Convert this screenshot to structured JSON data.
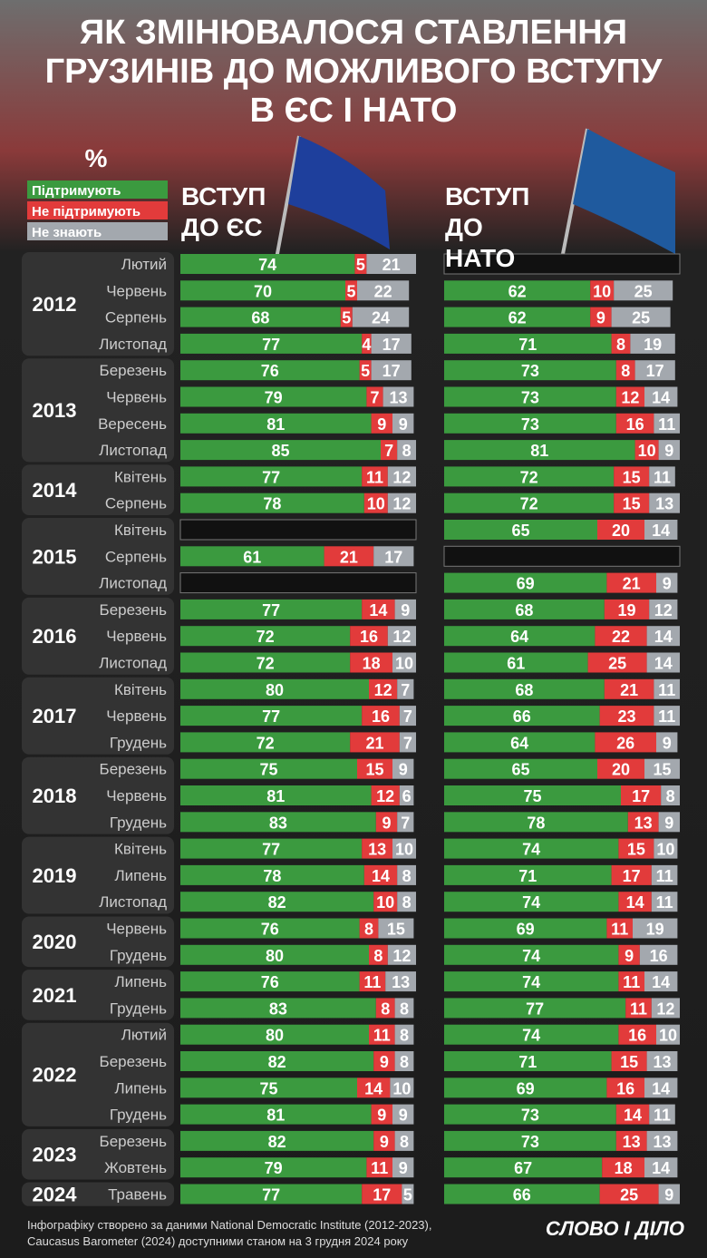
{
  "title": [
    "ЯК ЗМІНЮВАЛОСЯ СТАВЛЕННЯ",
    "ГРУЗИНІВ ДО МОЖЛИВОГО ВСТУПУ",
    "В ЄС І НАТО"
  ],
  "unit": "%",
  "years": [
    {
      "label": "2012",
      "months": [
        "Лютий",
        "Червень",
        "Серпень",
        "Листопад"
      ]
    },
    {
      "label": "2013",
      "months": [
        "Березень",
        "Червень",
        "Вересень",
        "Листопад"
      ]
    },
    {
      "label": "2014",
      "months": [
        "Квітень",
        "Серпень"
      ]
    },
    {
      "label": "2015",
      "months": [
        "Квітень",
        "Серпень",
        "Листопад"
      ]
    },
    {
      "label": "2016",
      "months": [
        "Березень",
        "Червень",
        "Листопад"
      ]
    },
    {
      "label": "2017",
      "months": [
        "Квітень",
        "Червень",
        "Грудень"
      ]
    },
    {
      "label": "2018",
      "months": [
        "Березень",
        "Червень",
        "Грудень"
      ]
    },
    {
      "label": "2019",
      "months": [
        "Квітень",
        "Липень",
        "Листопад"
      ]
    },
    {
      "label": "2020",
      "months": [
        "Червень",
        "Грудень"
      ]
    },
    {
      "label": "2021",
      "months": [
        "Липень",
        "Грудень"
      ]
    },
    {
      "label": "2022",
      "months": [
        "Лютий",
        "Березень",
        "Липень",
        "Грудень"
      ]
    },
    {
      "label": "2023",
      "months": [
        "Березень",
        "Жовтень"
      ]
    },
    {
      "label": "2024",
      "months": [
        "Травень"
      ]
    }
  ],
  "chart_data": [
    {
      "type": "bar",
      "stacked": true,
      "title": "ВСТУП ДО ЄС",
      "xlim": [
        0,
        100
      ],
      "series": [
        {
          "name": "Підтримують",
          "color": "#3b9a3f",
          "values": [
            74,
            70,
            68,
            77,
            76,
            79,
            81,
            85,
            77,
            78,
            null,
            61,
            null,
            77,
            72,
            72,
            80,
            77,
            72,
            75,
            81,
            83,
            77,
            78,
            82,
            76,
            80,
            76,
            83,
            80,
            82,
            75,
            81,
            82,
            79,
            77
          ]
        },
        {
          "name": "Не підтримують",
          "color": "#e23b3b",
          "values": [
            5,
            5,
            5,
            4,
            5,
            7,
            9,
            7,
            11,
            10,
            null,
            21,
            null,
            14,
            16,
            18,
            12,
            16,
            21,
            15,
            12,
            9,
            13,
            14,
            10,
            8,
            8,
            11,
            8,
            11,
            9,
            14,
            9,
            9,
            11,
            17
          ]
        },
        {
          "name": "Не знають",
          "color": "#a3a8ae",
          "values": [
            21,
            22,
            24,
            17,
            17,
            13,
            9,
            8,
            12,
            12,
            null,
            17,
            null,
            9,
            12,
            10,
            7,
            7,
            7,
            9,
            6,
            7,
            10,
            8,
            8,
            15,
            12,
            13,
            8,
            8,
            8,
            10,
            9,
            8,
            9,
            5
          ]
        }
      ]
    },
    {
      "type": "bar",
      "stacked": true,
      "title": "ВСТУП ДО НАТО",
      "xlim": [
        0,
        100
      ],
      "series": [
        {
          "color": "#3b9a3f",
          "values": [
            null,
            62,
            62,
            71,
            73,
            73,
            73,
            81,
            72,
            72,
            65,
            null,
            69,
            68,
            64,
            61,
            68,
            66,
            64,
            65,
            75,
            78,
            74,
            71,
            74,
            69,
            74,
            74,
            77,
            74,
            71,
            69,
            73,
            73,
            67,
            66
          ]
        },
        {
          "color": "#e23b3b",
          "values": [
            null,
            10,
            9,
            8,
            8,
            12,
            16,
            10,
            15,
            15,
            20,
            null,
            21,
            19,
            22,
            25,
            21,
            23,
            26,
            20,
            17,
            13,
            15,
            17,
            14,
            11,
            9,
            11,
            11,
            16,
            15,
            16,
            14,
            13,
            18,
            25
          ]
        },
        {
          "color": "#a3a8ae",
          "values": [
            null,
            25,
            25,
            19,
            17,
            14,
            11,
            9,
            11,
            13,
            14,
            null,
            9,
            12,
            14,
            14,
            11,
            11,
            9,
            15,
            8,
            9,
            10,
            11,
            11,
            19,
            16,
            14,
            12,
            10,
            13,
            14,
            11,
            13,
            14,
            9
          ]
        }
      ]
    }
  ],
  "source": [
    "Інфографіку створено за даними National Democratic Institute (2012-2023),",
    "Caucasus Barometer (2024) доступними станом на 3 грудня 2024 року"
  ],
  "logo": "СЛОВО І ДІЛО"
}
